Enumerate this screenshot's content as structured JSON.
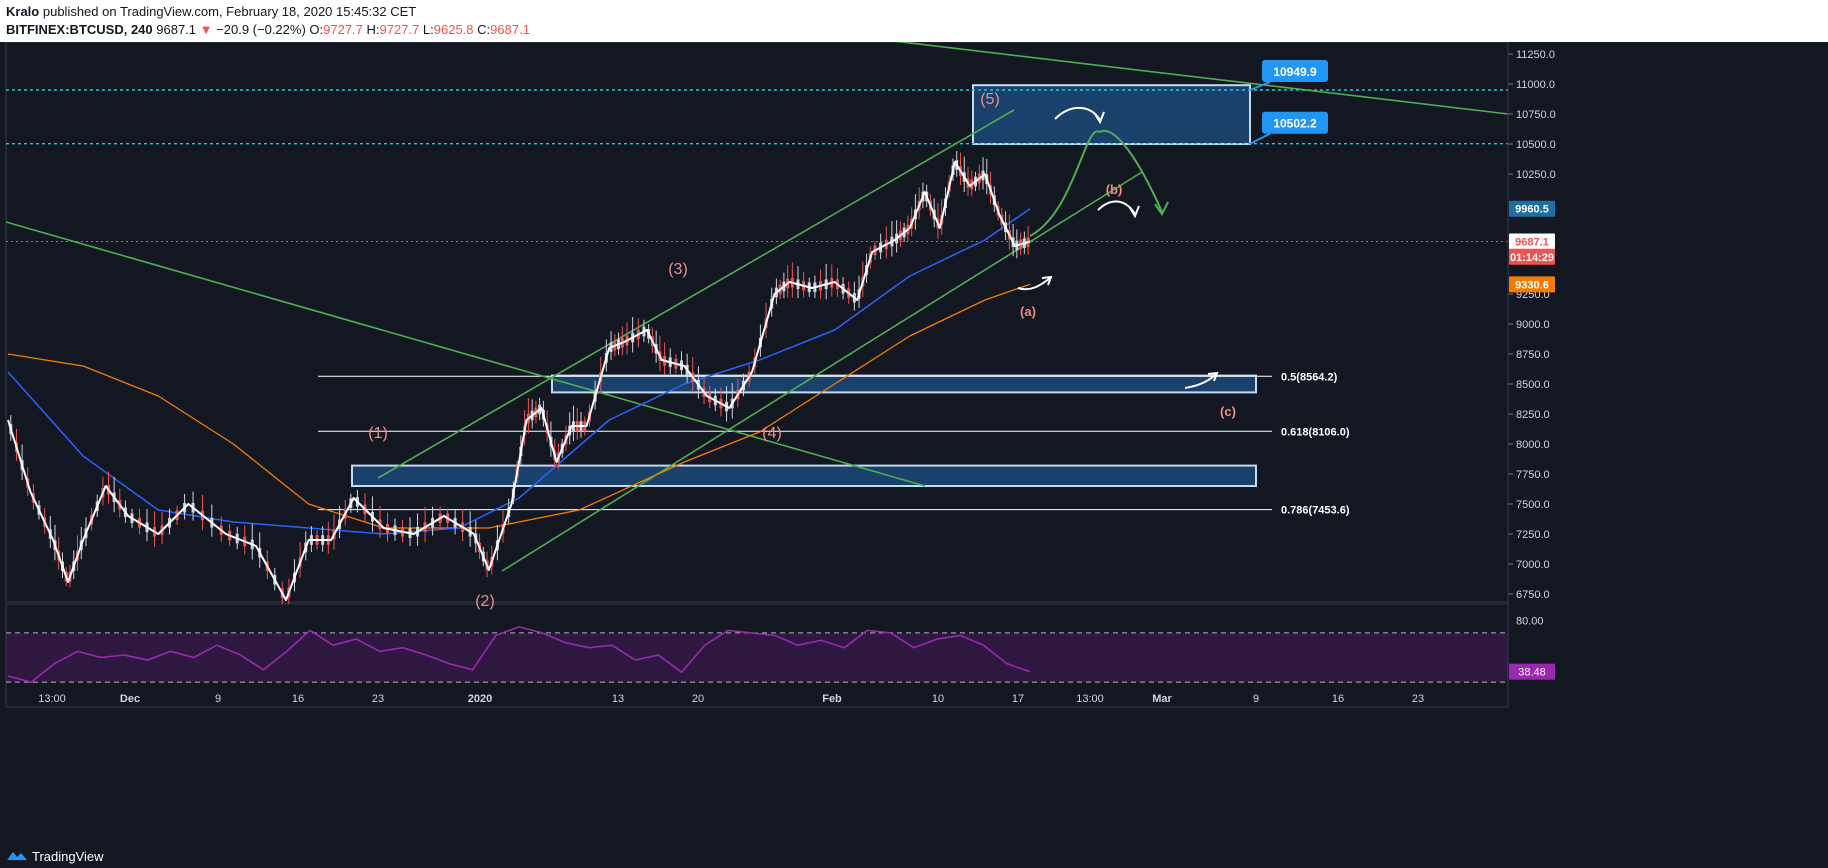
{
  "header": {
    "author": "Kralo",
    "published": "published on TradingView.com, February 18, 2020 15:45:32 CET",
    "symbol": "BITFINEX:BTCUSD, 240",
    "last": "9687.1",
    "change": "−20.9 (−0.22%)",
    "o_label": "O:",
    "o_value": "9727.7",
    "h_label": "H:",
    "h_value": "9727.7",
    "l_label": "L:",
    "l_value": "9625.8",
    "c_label": "C:",
    "c_value": "9687.1"
  },
  "footer": {
    "brand": "TradingView"
  },
  "colors": {
    "background": "#131722",
    "grid": "#2a2e39",
    "up_candle": "#ef5350",
    "price_line": "#ffffff",
    "ema_blue": "#2962ff",
    "ema_orange": "#f57c00",
    "channel_green": "#4caf50",
    "zone_fill": "#1e4f86",
    "rsi": "#9c27b0",
    "wave_label": "#f28b82"
  },
  "chart_data": {
    "type": "line",
    "title": "",
    "x_tick_labels": [
      "13:00",
      "Dec",
      "9",
      "16",
      "23",
      "2020",
      "13",
      "20",
      "Feb",
      "10",
      "17",
      "13:00",
      "Mar",
      "9",
      "16",
      "23"
    ],
    "y_tick_labels": [
      "11250.0",
      "11000.0",
      "10750.0",
      "10500.0",
      "10250.0",
      "9250.0",
      "9000.0",
      "8750.0",
      "8500.0",
      "8250.0",
      "8000.0",
      "7750.0",
      "7500.0",
      "7250.0",
      "7000.0",
      "6750.0"
    ],
    "ylim": [
      6700,
      11350
    ],
    "price_series": [
      {
        "t": 0,
        "v": 8200
      },
      {
        "t": 1.5,
        "v": 7600
      },
      {
        "t": 3,
        "v": 7200
      },
      {
        "t": 4,
        "v": 6850
      },
      {
        "t": 5,
        "v": 7200
      },
      {
        "t": 6.5,
        "v": 7650
      },
      {
        "t": 8,
        "v": 7400
      },
      {
        "t": 10,
        "v": 7250
      },
      {
        "t": 12,
        "v": 7500
      },
      {
        "t": 14.5,
        "v": 7250
      },
      {
        "t": 16.5,
        "v": 7150
      },
      {
        "t": 18.5,
        "v": 6700
      },
      {
        "t": 20,
        "v": 7200
      },
      {
        "t": 21.5,
        "v": 7200
      },
      {
        "t": 23,
        "v": 7550
      },
      {
        "t": 25,
        "v": 7300
      },
      {
        "t": 27,
        "v": 7250
      },
      {
        "t": 29,
        "v": 7400
      },
      {
        "t": 31,
        "v": 7250
      },
      {
        "t": 32,
        "v": 6950
      },
      {
        "t": 33.5,
        "v": 7500
      },
      {
        "t": 34.5,
        "v": 8200
      },
      {
        "t": 35.5,
        "v": 8300
      },
      {
        "t": 36.5,
        "v": 7850
      },
      {
        "t": 37.5,
        "v": 8150
      },
      {
        "t": 38.5,
        "v": 8150
      },
      {
        "t": 40,
        "v": 8800
      },
      {
        "t": 41,
        "v": 8850
      },
      {
        "t": 42.5,
        "v": 8950
      },
      {
        "t": 43.5,
        "v": 8700
      },
      {
        "t": 45,
        "v": 8650
      },
      {
        "t": 46.5,
        "v": 8400
      },
      {
        "t": 48,
        "v": 8300
      },
      {
        "t": 49.5,
        "v": 8600
      },
      {
        "t": 51,
        "v": 9250
      },
      {
        "t": 52,
        "v": 9350
      },
      {
        "t": 53.5,
        "v": 9300
      },
      {
        "t": 55,
        "v": 9350
      },
      {
        "t": 56.5,
        "v": 9200
      },
      {
        "t": 57.5,
        "v": 9600
      },
      {
        "t": 59,
        "v": 9700
      },
      {
        "t": 60,
        "v": 9800
      },
      {
        "t": 61,
        "v": 10100
      },
      {
        "t": 62,
        "v": 9800
      },
      {
        "t": 63,
        "v": 10350
      },
      {
        "t": 64,
        "v": 10150
      },
      {
        "t": 65,
        "v": 10250
      },
      {
        "t": 66,
        "v": 9900
      },
      {
        "t": 67,
        "v": 9650
      },
      {
        "t": 68,
        "v": 9687.1
      }
    ],
    "ema_blue": [
      {
        "t": 0,
        "v": 8600
      },
      {
        "t": 5,
        "v": 7900
      },
      {
        "t": 10,
        "v": 7450
      },
      {
        "t": 15,
        "v": 7350
      },
      {
        "t": 20,
        "v": 7300
      },
      {
        "t": 25,
        "v": 7250
      },
      {
        "t": 30,
        "v": 7300
      },
      {
        "t": 34,
        "v": 7550
      },
      {
        "t": 40,
        "v": 8200
      },
      {
        "t": 45,
        "v": 8500
      },
      {
        "t": 50,
        "v": 8700
      },
      {
        "t": 55,
        "v": 8950
      },
      {
        "t": 60,
        "v": 9400
      },
      {
        "t": 65,
        "v": 9700
      },
      {
        "t": 68,
        "v": 9960.5
      }
    ],
    "ema_orange": [
      {
        "t": 0,
        "v": 8750
      },
      {
        "t": 5,
        "v": 8650
      },
      {
        "t": 10,
        "v": 8400
      },
      {
        "t": 15,
        "v": 8000
      },
      {
        "t": 20,
        "v": 7500
      },
      {
        "t": 25,
        "v": 7300
      },
      {
        "t": 32,
        "v": 7300
      },
      {
        "t": 38,
        "v": 7450
      },
      {
        "t": 45,
        "v": 7850
      },
      {
        "t": 50,
        "v": 8100
      },
      {
        "t": 55,
        "v": 8500
      },
      {
        "t": 60,
        "v": 8900
      },
      {
        "t": 65,
        "v": 9200
      },
      {
        "t": 68,
        "v": 9330.6
      }
    ],
    "fib_levels": [
      {
        "label": "0.5(8564.2)",
        "value": 8564.2
      },
      {
        "label": "0.618(8106.0)",
        "value": 8106.0
      },
      {
        "label": "0.786(7453.6)",
        "value": 7453.6
      }
    ],
    "target_levels": [
      {
        "label": "10949.9",
        "value": 10949.9
      },
      {
        "label": "10502.2",
        "value": 10502.2
      }
    ],
    "price_tags": [
      {
        "label": "9960.5",
        "value": 9960.5,
        "color": "#1c6ea4"
      },
      {
        "label": "9687.1",
        "value": 9687.1,
        "color": "#ffffff"
      },
      {
        "label": "01:14:29",
        "value": 9560,
        "color": "#ef5350"
      },
      {
        "label": "9330.6",
        "value": 9330.6,
        "color": "#f57c00"
      }
    ],
    "zones": [
      {
        "name": "target-zone",
        "top": 10990,
        "bottom": 10500
      },
      {
        "name": "fib-0.5-zone",
        "top": 8570,
        "bottom": 8430
      },
      {
        "name": "support-zone",
        "top": 7820,
        "bottom": 7650
      }
    ],
    "wave_labels": [
      "(1)",
      "(2)",
      "(3)",
      "(4)",
      "(5)",
      "(a)",
      "(b)",
      "(c)"
    ],
    "rsi": {
      "y_tick_labels": [
        "80.00"
      ],
      "current": "38.48",
      "upper": 70,
      "lower": 30,
      "values": [
        35,
        30,
        45,
        55,
        50,
        52,
        48,
        55,
        50,
        60,
        52,
        40,
        55,
        72,
        60,
        65,
        55,
        58,
        52,
        45,
        40,
        68,
        75,
        70,
        62,
        58,
        60,
        48,
        52,
        38,
        60,
        72,
        70,
        68,
        60,
        64,
        58,
        72,
        70,
        58,
        65,
        68,
        60,
        45,
        38.48
      ]
    }
  }
}
